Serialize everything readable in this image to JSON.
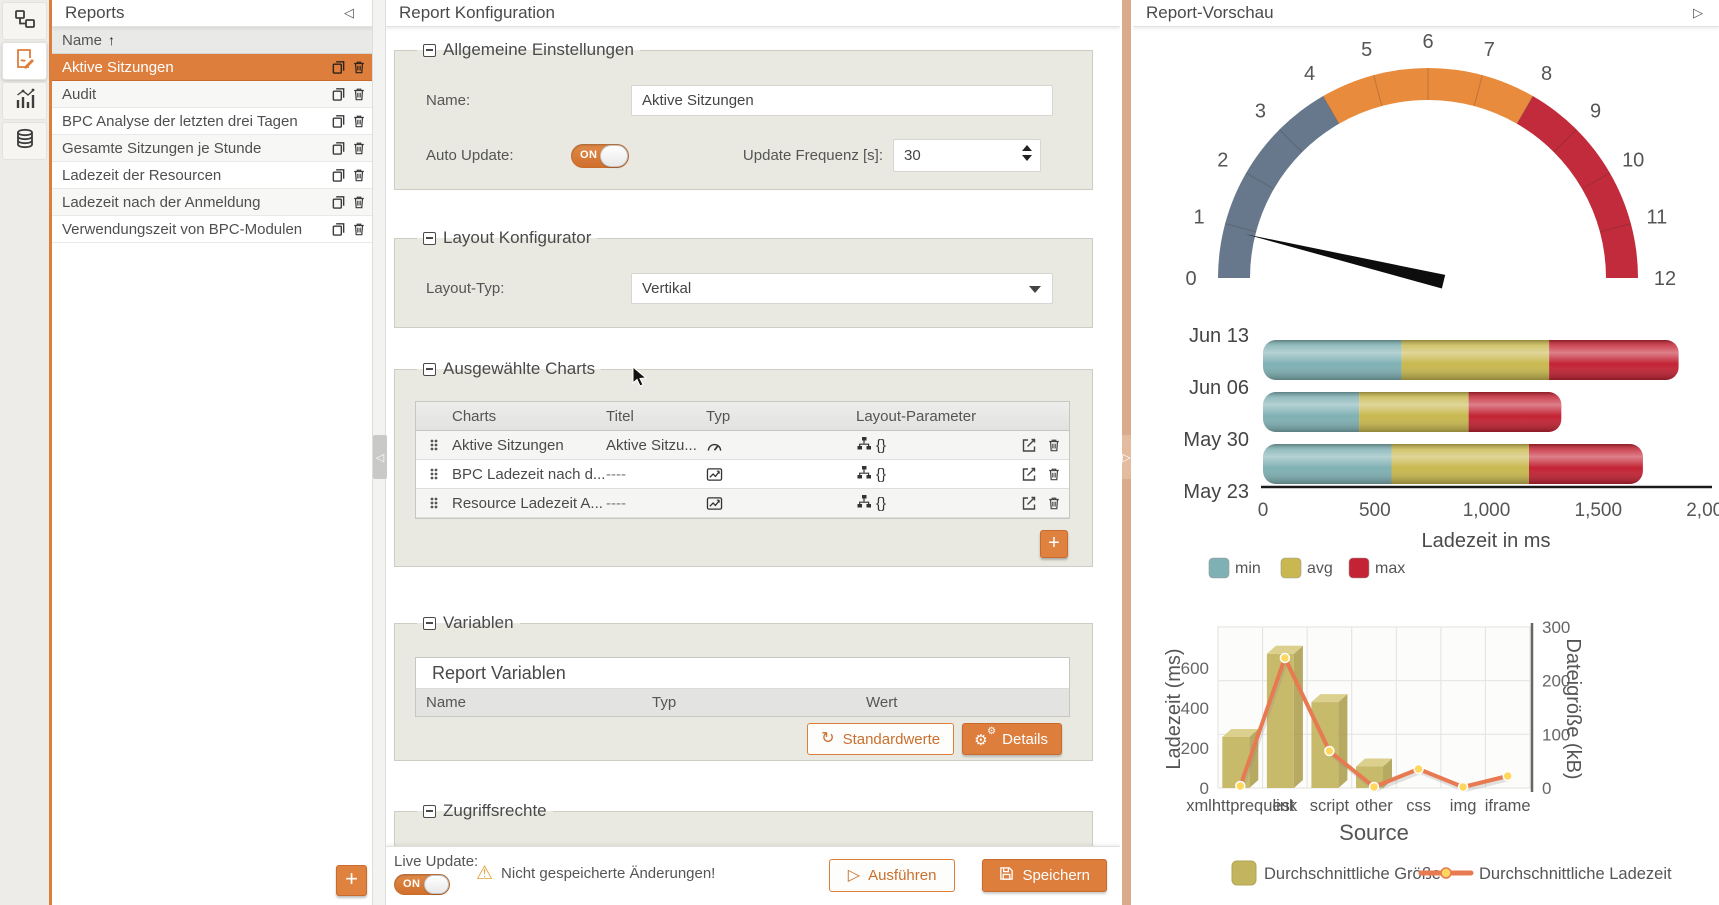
{
  "colors": {
    "accent": "#dd7e3d",
    "accent_dark": "#c96b2e",
    "splitter_tan": "#d9ab8c",
    "gauge_segments": [
      "#68788c",
      "#e88b3d",
      "#c22b3b"
    ],
    "stack_min": "#7fb0b3",
    "stack_avg": "#c8b84f",
    "stack_max": "#c32334",
    "combo_bar": "#c3b45e",
    "combo_line": "#e87a52"
  },
  "rail": {
    "items": [
      {
        "icon": "hierarchy-icon",
        "active": false
      },
      {
        "icon": "report-edit-icon",
        "active": true
      },
      {
        "icon": "statistics-icon",
        "active": false
      },
      {
        "icon": "database-icon",
        "active": false
      }
    ]
  },
  "reports_panel": {
    "title": "Reports",
    "collapse_glyph": "◁",
    "name_column": "Name",
    "sort_glyph": "↑",
    "add_glyph": "+",
    "rows": [
      {
        "label": "Aktive Sitzungen",
        "selected": true
      },
      {
        "label": "Audit",
        "selected": false
      },
      {
        "label": "BPC Analyse der letzten drei Tagen",
        "selected": false
      },
      {
        "label": "Gesamte Sitzungen je Stunde",
        "selected": false
      },
      {
        "label": "Ladezeit der Resourcen",
        "selected": false
      },
      {
        "label": "Ladezeit nach der Anmeldung",
        "selected": false
      },
      {
        "label": "Verwendungszeit von BPC-Modulen",
        "selected": false
      }
    ]
  },
  "config_panel": {
    "title": "Report Konfiguration",
    "general": {
      "legend": "Allgemeine Einstellungen",
      "name_label": "Name:",
      "name_value": "Aktive Sitzungen",
      "auto_update_label": "Auto Update:",
      "toggle_text": "ON",
      "freq_label": "Update Frequenz [s]:",
      "freq_value": "30"
    },
    "layout": {
      "legend": "Layout Konfigurator",
      "type_label": "Layout-Typ:",
      "type_value": "Vertikal"
    },
    "charts": {
      "legend": "Ausgewählte Charts",
      "columns": [
        "Charts",
        "Titel",
        "Typ",
        "Layout-Parameter"
      ],
      "add_glyph": "+",
      "rows": [
        {
          "name": "Aktive Sitzungen",
          "titel": "Aktive Sitzu...",
          "typ": "gauge",
          "param": "{}"
        },
        {
          "name": "BPC Ladezeit nach d...",
          "titel": "----",
          "typ": "line",
          "param": "{}"
        },
        {
          "name": "Resource Ladezeit A...",
          "titel": "----",
          "typ": "line",
          "param": "{}"
        }
      ]
    },
    "variables": {
      "legend": "Variablen",
      "box_title": "Report Variablen",
      "columns": [
        "Name",
        "Typ",
        "Wert"
      ],
      "defaults_label": "Standardwerte",
      "details_label": "Details"
    },
    "access": {
      "legend": "Zugriffsrechte"
    },
    "footer": {
      "live_update_label": "Live Update:",
      "toggle_text": "ON",
      "warning_glyph": "⚠",
      "warning_text": "Nicht gespeicherte Änderungen!",
      "run_label": "Ausführen",
      "run_glyph": "▷",
      "save_label": "Speichern"
    }
  },
  "preview_panel": {
    "title": "Report-Vorschau",
    "expand_glyph": "▷"
  },
  "chart_data": [
    {
      "type": "gauge",
      "min": 0,
      "max": 12,
      "value": 0.9,
      "tick_labels": [
        0,
        1,
        2,
        3,
        4,
        5,
        6,
        7,
        8,
        9,
        10,
        11,
        12
      ],
      "segments": [
        {
          "from": 0,
          "to": 4,
          "color": "#68788c"
        },
        {
          "from": 4,
          "to": 8,
          "color": "#e88b3d"
        },
        {
          "from": 8,
          "to": 12,
          "color": "#c22b3b"
        }
      ]
    },
    {
      "type": "bar",
      "orientation": "horizontal",
      "stacked": true,
      "bars_between_category_ticks": true,
      "axis_categories": [
        "Jun 13",
        "Jun 06",
        "May 30",
        "May 23"
      ],
      "series": [
        {
          "name": "min",
          "color": "#7fb0b3",
          "values": [
            620,
            430,
            575
          ]
        },
        {
          "name": "avg",
          "color": "#c8b84f",
          "values": [
            660,
            490,
            615
          ]
        },
        {
          "name": "max",
          "color": "#c32334",
          "values": [
            580,
            415,
            510
          ]
        }
      ],
      "xlabel": "Ladezeit in ms",
      "xlim": [
        0,
        2000
      ],
      "xticks": [
        0,
        500,
        1000,
        1500,
        2000
      ],
      "xtick_labels": [
        "0",
        "500",
        "1,000",
        "1,500",
        "2,000"
      ],
      "legend_position": "bottom"
    },
    {
      "type": "combo",
      "categories": [
        "xmlhttprequest",
        "link",
        "script",
        "other",
        "css",
        "img",
        "iframe"
      ],
      "bars": {
        "name": "Durchschnittliche Größe",
        "axis": "right",
        "color": "#c3b45e",
        "values": [
          95,
          250,
          160,
          40,
          0,
          0,
          0
        ]
      },
      "line": {
        "name": "Durchschnittliche Ladezeit",
        "axis": "left",
        "color": "#e87a52",
        "values": [
          10,
          650,
          185,
          5,
          95,
          5,
          60
        ]
      },
      "left_axis": {
        "label": "Ladezeit (ms)",
        "ticks": [
          0,
          200,
          400,
          600
        ],
        "max": 805
      },
      "right_axis": {
        "label": "Dateigröße (kB)",
        "ticks": [
          0,
          100,
          200,
          300
        ],
        "max": 300
      },
      "xlabel": "Source",
      "grid": true,
      "legend_position": "bottom"
    }
  ]
}
